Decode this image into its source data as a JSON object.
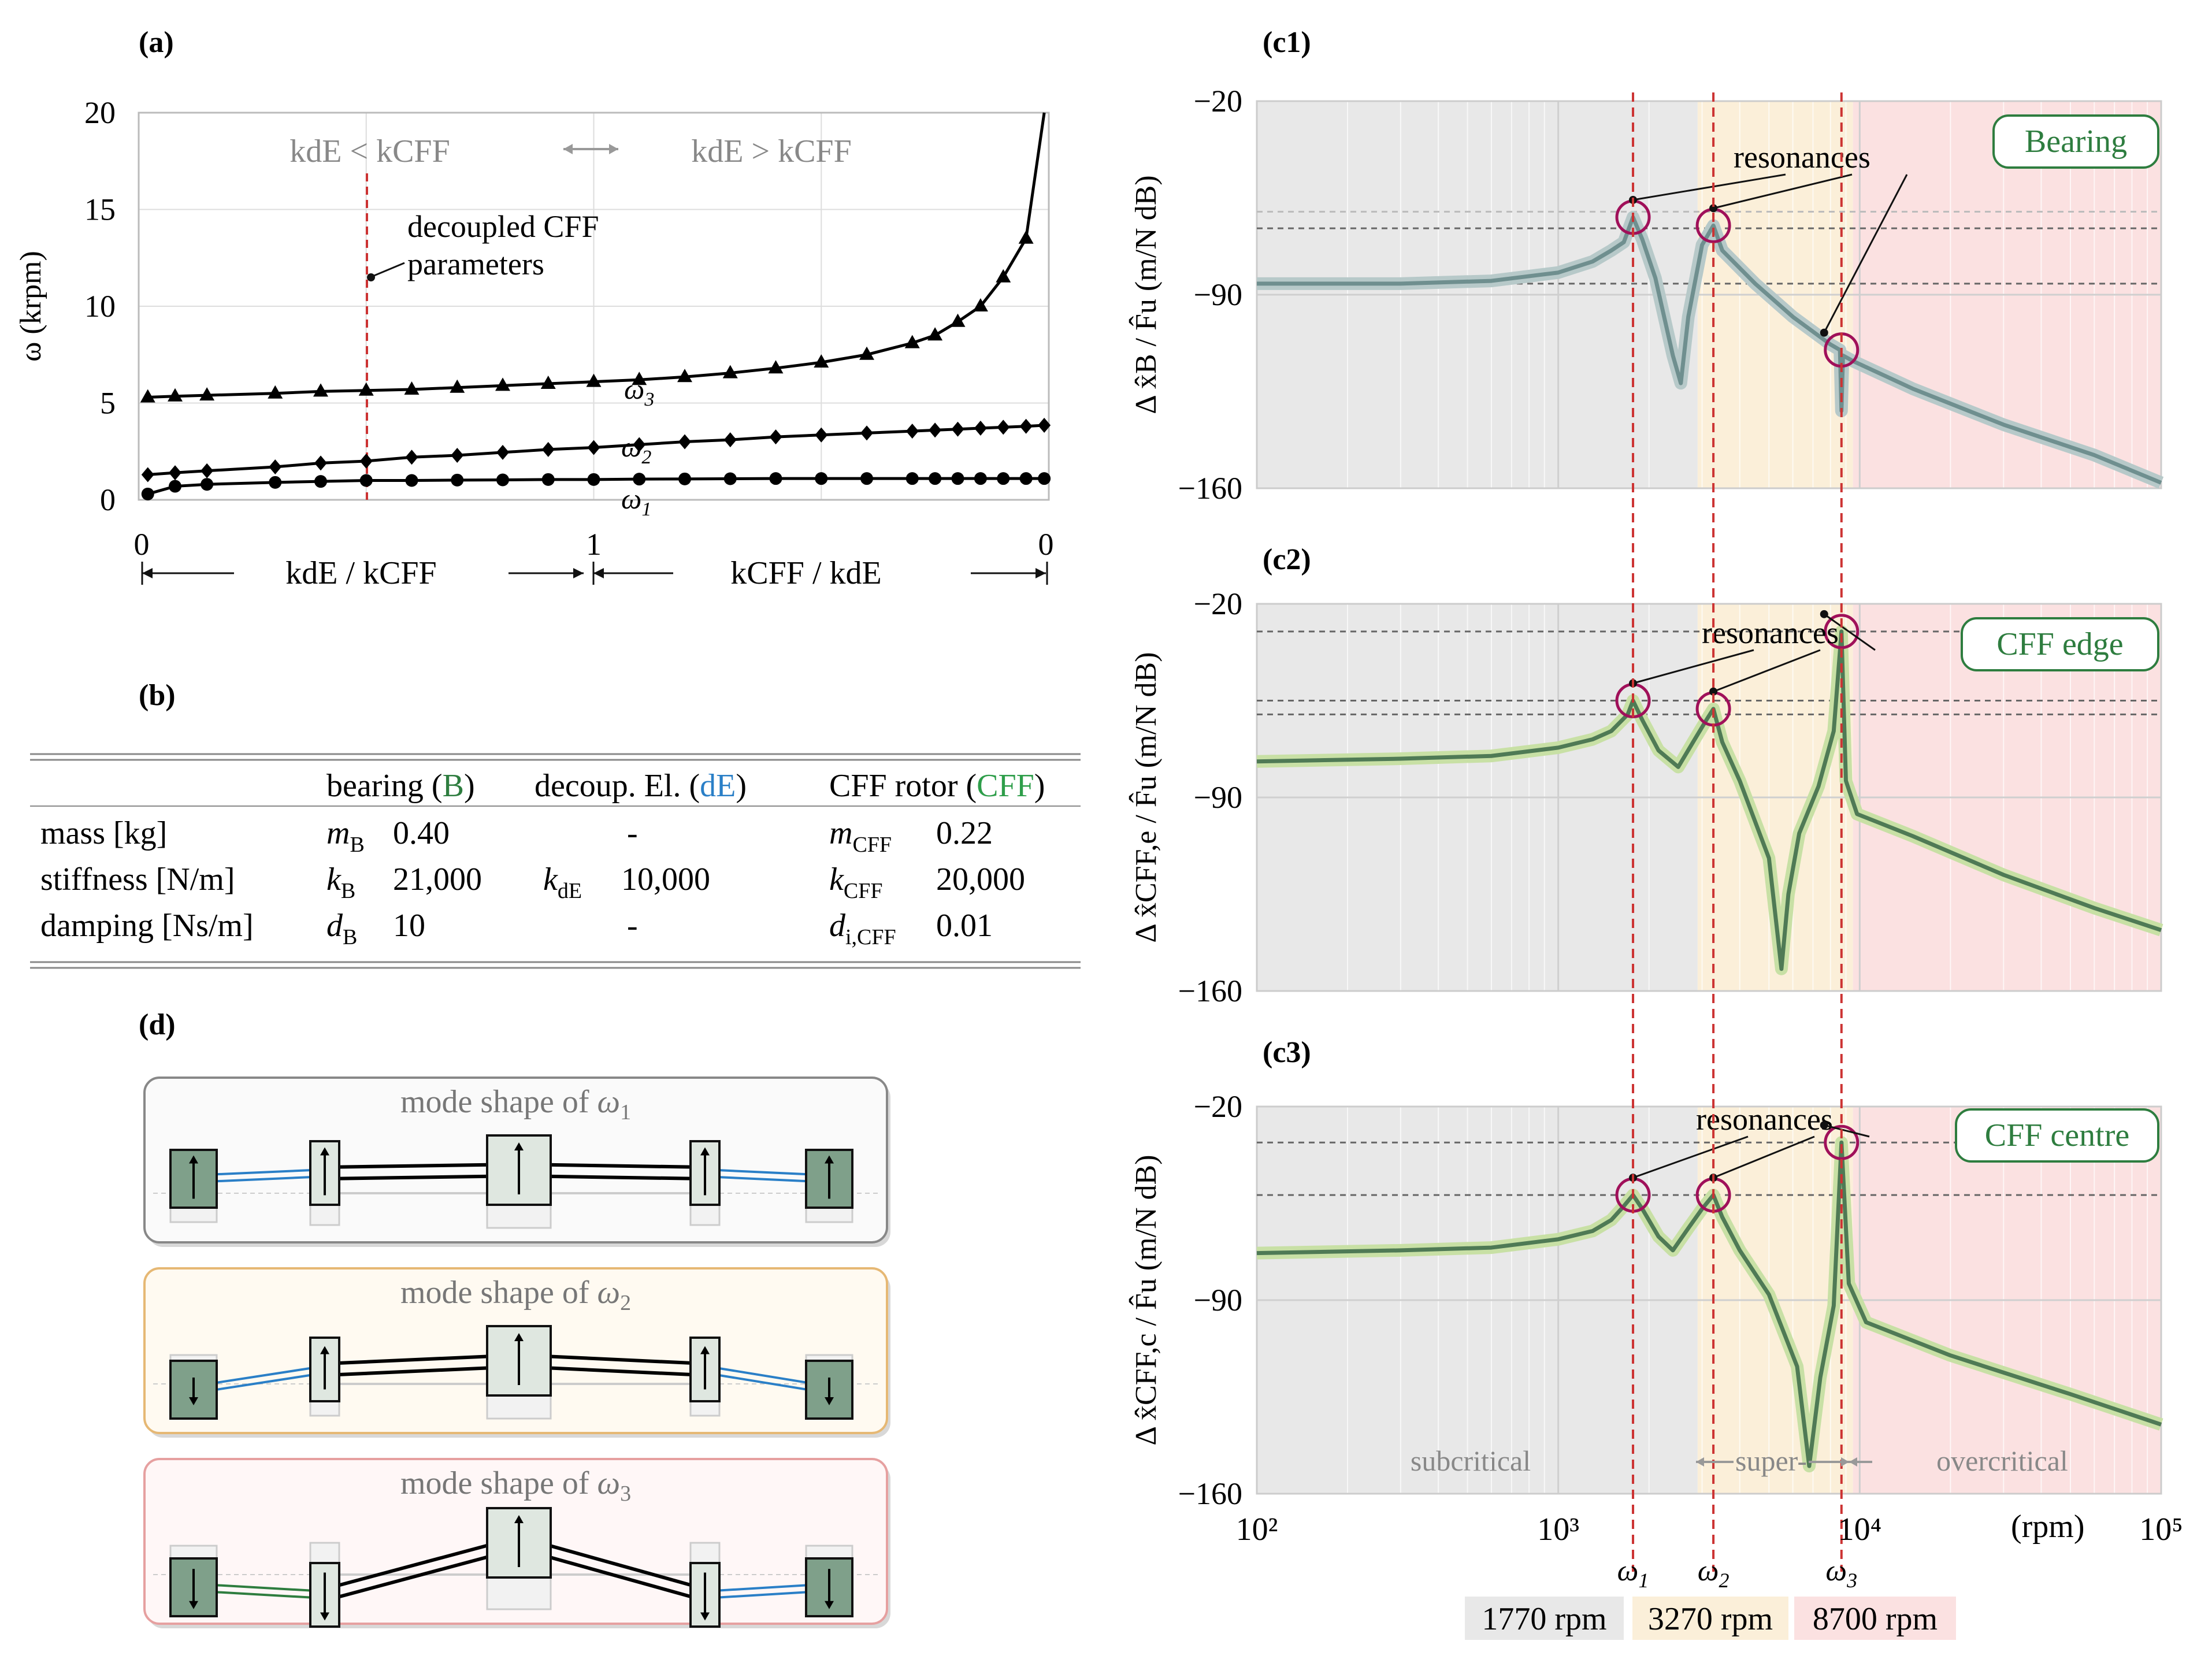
{
  "panel_labels": {
    "a": "(a)",
    "b": "(b)",
    "c1": "(c1)",
    "c2": "(c2)",
    "c3": "(c3)",
    "d": "(d)"
  },
  "chart_data": [
    {
      "id": "a",
      "type": "line",
      "ylabel": "ω (krpm)",
      "ylim": [
        0,
        20
      ],
      "yticks": [
        "0",
        "5",
        "10",
        "15",
        "20"
      ],
      "xticks": [
        "0",
        "1",
        "0"
      ],
      "xlabel_left": "kdE / kCFF",
      "xlabel_right": "kCFF / kdE",
      "region_left": "kdE < kCFF",
      "region_right": "kdE > kCFF",
      "annotation": "decoupled CFF parameters",
      "annotation_lines": [
        "decoupled CFF",
        "parameters"
      ],
      "x_param": [
        0.02,
        0.08,
        0.15,
        0.3,
        0.4,
        0.5,
        0.6,
        0.7,
        0.8,
        0.9,
        1.0,
        1.1,
        1.2,
        1.3,
        1.4,
        1.5,
        1.6,
        1.7,
        1.75,
        1.8,
        1.85,
        1.9,
        1.95,
        1.99
      ],
      "series": [
        {
          "name": "ω1",
          "marker": "circle",
          "values": [
            0.3,
            0.7,
            0.8,
            0.9,
            0.95,
            1.0,
            1.0,
            1.02,
            1.03,
            1.05,
            1.05,
            1.07,
            1.08,
            1.09,
            1.1,
            1.1,
            1.1,
            1.1,
            1.1,
            1.1,
            1.1,
            1.1,
            1.1,
            1.1
          ]
        },
        {
          "name": "ω2",
          "marker": "diamond",
          "values": [
            1.3,
            1.4,
            1.5,
            1.7,
            1.9,
            2.0,
            2.2,
            2.3,
            2.45,
            2.6,
            2.7,
            2.85,
            3.0,
            3.1,
            3.25,
            3.35,
            3.45,
            3.55,
            3.6,
            3.65,
            3.7,
            3.75,
            3.8,
            3.85
          ]
        },
        {
          "name": "ω3",
          "marker": "triangle",
          "values": [
            5.3,
            5.35,
            5.4,
            5.5,
            5.6,
            5.65,
            5.7,
            5.8,
            5.9,
            6.0,
            6.1,
            6.2,
            6.35,
            6.55,
            6.8,
            7.1,
            7.5,
            8.1,
            8.5,
            9.2,
            10.0,
            11.5,
            13.5,
            20.0
          ]
        }
      ]
    },
    {
      "id": "c1",
      "type": "line",
      "title": "Bearing",
      "ylabel": "Δ x̂B / F̂u (m/N dB)",
      "ylim": [
        -160,
        -20
      ],
      "yticks": [
        "−20",
        "−90",
        "−160"
      ],
      "xscale": "log",
      "xlim": [
        100,
        100000
      ],
      "annotation": "resonances",
      "resonance_rpm": [
        1770,
        3270,
        8700
      ],
      "x": [
        100,
        300,
        600,
        1000,
        1300,
        1500,
        1650,
        1770,
        1900,
        2100,
        2400,
        2550,
        2700,
        3000,
        3270,
        3500,
        4500,
        6000,
        8000,
        8600,
        8700,
        8800,
        9500,
        15000,
        30000,
        60000,
        100000
      ],
      "series": [
        {
          "name": "Bearing",
          "values": [
            -86,
            -86,
            -85,
            -82,
            -78,
            -74,
            -71,
            -62,
            -70,
            -84,
            -112,
            -122,
            -98,
            -72,
            -65,
            -74,
            -86,
            -98,
            -108,
            -110,
            -132,
            -112,
            -114,
            -124,
            -137,
            -148,
            -158
          ]
        }
      ]
    },
    {
      "id": "c2",
      "type": "line",
      "title": "CFF edge",
      "ylabel": "Δ x̂CFF,e / F̂u (m/N dB)",
      "ylim": [
        -160,
        -20
      ],
      "yticks": [
        "−20",
        "−90",
        "−160"
      ],
      "xscale": "log",
      "xlim": [
        100,
        100000
      ],
      "annotation": "resonances",
      "resonance_rpm": [
        1770,
        3270,
        8700
      ],
      "x": [
        100,
        300,
        600,
        1000,
        1300,
        1500,
        1700,
        1770,
        1900,
        2150,
        2500,
        2800,
        3100,
        3270,
        3500,
        4000,
        5000,
        5500,
        5800,
        6300,
        7300,
        8200,
        8700,
        9000,
        9800,
        15000,
        30000,
        60000,
        100000
      ],
      "series": [
        {
          "name": "CFF edge",
          "values": [
            -77,
            -76,
            -75,
            -72,
            -69,
            -66,
            -60,
            -55,
            -62,
            -73,
            -79,
            -70,
            -62,
            -58,
            -70,
            -84,
            -112,
            -152,
            -125,
            -103,
            -86,
            -66,
            -30,
            -84,
            -96,
            -104,
            -118,
            -130,
            -138
          ]
        }
      ]
    },
    {
      "id": "c3",
      "type": "line",
      "title": "CFF centre",
      "ylabel": "Δ x̂CFF,c / F̂u (m/N dB)",
      "ylim": [
        -160,
        -20
      ],
      "yticks": [
        "−20",
        "−90",
        "−160"
      ],
      "xscale": "log",
      "xlim": [
        100,
        100000
      ],
      "annotation": "resonances",
      "resonance_rpm": [
        1770,
        3270,
        8700
      ],
      "x": [
        100,
        300,
        600,
        1000,
        1300,
        1500,
        1650,
        1770,
        1900,
        2150,
        2400,
        2700,
        3000,
        3270,
        3500,
        4000,
        5000,
        6200,
        6800,
        7400,
        8200,
        8700,
        9200,
        10500,
        20000,
        50000,
        100000
      ],
      "series": [
        {
          "name": "CFF centre",
          "values": [
            -73,
            -72,
            -71,
            -68,
            -65,
            -61,
            -56,
            -52,
            -57,
            -67,
            -72,
            -64,
            -57,
            -52,
            -60,
            -72,
            -88,
            -114,
            -150,
            -118,
            -92,
            -33,
            -84,
            -98,
            -110,
            -124,
            -135
          ]
        }
      ],
      "regions": [
        {
          "label": "subcritical",
          "rpm": "1770 rpm"
        },
        {
          "label": "super-",
          "rpm": "3270 rpm"
        },
        {
          "label": "overcritical",
          "rpm": "8700 rpm"
        }
      ],
      "xticks": [
        "10²",
        "10³",
        "10⁴",
        "10⁵"
      ],
      "xunit": "(rpm)",
      "omega_labels": [
        "ω1",
        "ω2",
        "ω3"
      ]
    }
  ],
  "table": {
    "headers": [
      "bearing (B)",
      "decoup. El. (dE)",
      "CFF rotor (CFF)"
    ],
    "rows": [
      {
        "label": "mass [kg]",
        "sym_b": "mB",
        "val_b": "0.40",
        "sym_de": "",
        "val_de": "-",
        "sym_cff": "mCFF",
        "val_cff": "0.22"
      },
      {
        "label": "stiffness [N/m]",
        "sym_b": "kB",
        "val_b": "21,000",
        "sym_de": "kdE",
        "val_de": "10,000",
        "sym_cff": "kCFF",
        "val_cff": "20,000"
      },
      {
        "label": "damping [Ns/m]",
        "sym_b": "dB",
        "val_b": "10",
        "sym_de": "",
        "val_de": "-",
        "sym_cff": "di,CFF",
        "val_cff": "0.01"
      }
    ]
  },
  "mode_shapes": [
    {
      "title": "mode shape of ω1"
    },
    {
      "title": "mode shape of ω2"
    },
    {
      "title": "mode shape of ω3"
    }
  ],
  "colors": {
    "bearing": "#2e7d3f",
    "decoupling": "#2a7fc7",
    "cff": "#2e9e4a",
    "resonance": "#a0105a",
    "dash_red": "#cc3333",
    "sub": "#e8e8e8",
    "super": "#fbefd9",
    "over": "#fbe1e1",
    "mode1_border": "#888888",
    "mode2_border": "#e6b874",
    "mode3_border": "#e6a0a0"
  }
}
